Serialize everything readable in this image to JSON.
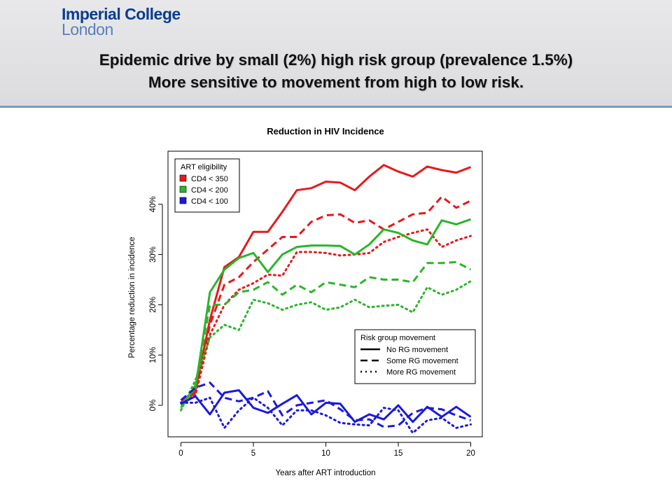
{
  "header": {
    "logo_line1": "Imperial College",
    "logo_line2": "London",
    "title_line1": "Epidemic drive by small (2%) high risk group (prevalence 1.5%)",
    "title_line2": "More sensitive to movement from high to low risk."
  },
  "chart_data": {
    "type": "line",
    "title": "Reduction in HIV Incidence",
    "xlabel": "Years after ART introduction",
    "ylabel": "Percentage reduction in incidence",
    "xlim": [
      0,
      20
    ],
    "ylim": [
      -7,
      50
    ],
    "x_ticks": [
      0,
      5,
      10,
      15,
      20
    ],
    "y_ticks": [
      0,
      10,
      20,
      30,
      40
    ],
    "y_tick_labels": [
      "0%",
      "10%",
      "20%",
      "30%",
      "40%"
    ],
    "grid": false,
    "legends": [
      {
        "title": "ART eligibility",
        "placement": "top-left",
        "entries": [
          {
            "label": "CD4 < 350",
            "color": "#e41a1c"
          },
          {
            "label": "CD4 < 200",
            "color": "#2ab52a"
          },
          {
            "label": "CD4 < 100",
            "color": "#1a1adc"
          }
        ]
      },
      {
        "title": "Risk group movement",
        "placement": "bottom-right",
        "entries": [
          {
            "label": "No RG movement",
            "style": "solid"
          },
          {
            "label": "Some RG movement",
            "style": "dashed"
          },
          {
            "label": "More RG movement",
            "style": "dotted"
          }
        ]
      }
    ],
    "x": [
      0,
      1,
      2,
      3,
      4,
      5,
      6,
      7,
      8,
      9,
      10,
      11,
      12,
      13,
      14,
      15,
      16,
      17,
      18,
      19,
      20
    ],
    "series": [
      {
        "group": "CD4 < 350",
        "movement": "No RG movement",
        "color": "#e41a1c",
        "style": "solid",
        "values": [
          0.5,
          3.0,
          17.0,
          27.5,
          29.5,
          34.5,
          34.5,
          38.5,
          42.8,
          43.2,
          44.5,
          44.3,
          42.8,
          45.5,
          47.8,
          46.5,
          45.5,
          47.5,
          46.8,
          46.3,
          47.4
        ]
      },
      {
        "group": "CD4 < 350",
        "movement": "Some RG movement",
        "color": "#e41a1c",
        "style": "dashed",
        "values": [
          0.5,
          2.5,
          16.0,
          24.0,
          25.5,
          28.5,
          31.0,
          33.5,
          33.5,
          36.5,
          37.8,
          38.0,
          36.3,
          36.8,
          35.0,
          36.5,
          38.0,
          38.3,
          41.5,
          39.3,
          40.7
        ]
      },
      {
        "group": "CD4 < 350",
        "movement": "More RG movement",
        "color": "#e41a1c",
        "style": "dotted",
        "values": [
          0.5,
          2.0,
          14.0,
          20.0,
          23.0,
          24.3,
          26.0,
          25.8,
          30.5,
          30.5,
          30.3,
          29.8,
          30.0,
          30.3,
          32.5,
          33.5,
          34.3,
          35.0,
          31.5,
          32.8,
          33.7
        ]
      },
      {
        "group": "CD4 < 200",
        "movement": "No RG movement",
        "color": "#2ab52a",
        "style": "solid",
        "values": [
          0.0,
          3.5,
          22.5,
          27.0,
          29.3,
          30.3,
          26.5,
          30.0,
          31.5,
          31.8,
          31.8,
          31.7,
          30.0,
          32.0,
          35.0,
          34.3,
          32.8,
          32.0,
          36.8,
          36.0,
          37.0
        ]
      },
      {
        "group": "CD4 < 200",
        "movement": "Some RG movement",
        "color": "#2ab52a",
        "style": "dashed",
        "values": [
          -0.5,
          4.0,
          20.0,
          20.0,
          22.5,
          23.0,
          24.5,
          22.0,
          24.0,
          22.5,
          24.5,
          24.0,
          23.5,
          25.5,
          25.0,
          25.0,
          24.5,
          28.3,
          28.3,
          28.5,
          27.0
        ]
      },
      {
        "group": "CD4 < 200",
        "movement": "More RG movement",
        "color": "#2ab52a",
        "style": "dotted",
        "values": [
          -1.0,
          5.0,
          13.5,
          16.0,
          15.0,
          21.0,
          20.3,
          19.0,
          20.0,
          20.5,
          19.0,
          19.5,
          21.0,
          19.5,
          19.8,
          20.0,
          18.5,
          23.5,
          22.0,
          23.0,
          24.7
        ]
      },
      {
        "group": "CD4 < 100",
        "movement": "No RG movement",
        "color": "#1a1adc",
        "style": "solid",
        "values": [
          0.3,
          1.8,
          -1.8,
          2.5,
          3.0,
          -0.5,
          -1.5,
          0.3,
          2.0,
          -1.8,
          0.5,
          0.3,
          -3.3,
          -1.8,
          -2.8,
          0.0,
          -3.3,
          -0.3,
          -2.3,
          -0.3,
          -2.3
        ]
      },
      {
        "group": "CD4 < 100",
        "movement": "Some RG movement",
        "color": "#1a1adc",
        "style": "dashed",
        "values": [
          1.0,
          3.5,
          4.5,
          1.5,
          0.8,
          1.5,
          2.8,
          -2.0,
          0.0,
          0.5,
          1.0,
          -0.8,
          -3.0,
          -2.8,
          -4.3,
          -4.0,
          -1.5,
          -0.5,
          -0.8,
          -2.0,
          -3.0
        ]
      },
      {
        "group": "CD4 < 100",
        "movement": "More RG movement",
        "color": "#1a1adc",
        "style": "dotted",
        "values": [
          0.5,
          0.5,
          1.5,
          -4.5,
          -1.0,
          1.5,
          -0.5,
          -4.0,
          -1.0,
          -1.0,
          -2.0,
          -3.5,
          -3.8,
          -4.0,
          -0.5,
          -1.0,
          -5.5,
          -3.0,
          -2.5,
          -4.5,
          -3.8
        ]
      }
    ]
  }
}
